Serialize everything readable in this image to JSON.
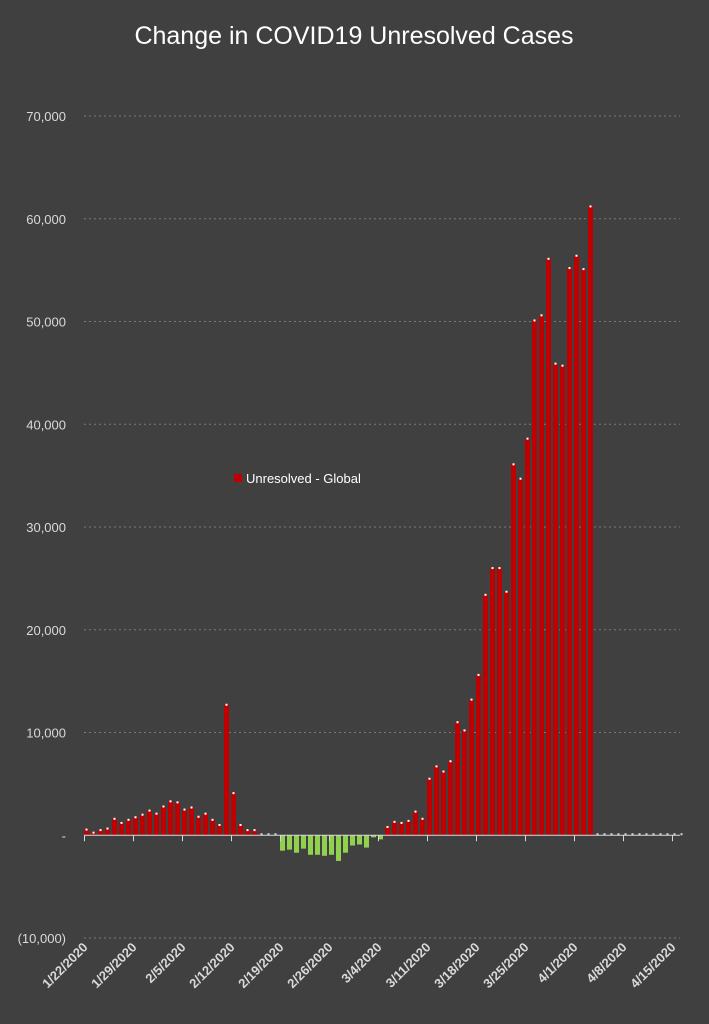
{
  "chart_data": {
    "type": "bar",
    "title": "Change in COVID19 Unresolved Cases",
    "xlabel": "",
    "ylabel": "",
    "start_date": "1/22/2020",
    "x_tick_labels": [
      "1/22/2020",
      "1/29/2020",
      "2/5/2020",
      "2/12/2020",
      "2/19/2020",
      "2/26/2020",
      "3/4/2020",
      "3/11/2020",
      "3/18/2020",
      "3/25/2020",
      "4/1/2020",
      "4/8/2020",
      "4/15/2020"
    ],
    "y_ticks": [
      -10000,
      0,
      10000,
      20000,
      30000,
      40000,
      50000,
      60000,
      70000
    ],
    "y_tick_labels": [
      "(10,000)",
      "-",
      "10,000",
      "20,000",
      "30,000",
      "40,000",
      "50,000",
      "60,000",
      "70,000"
    ],
    "ylim": [
      -10000,
      70000
    ],
    "grid": true,
    "legend_position": "middle-left",
    "series": [
      {
        "name": "Unresolved - Global",
        "positive_color": "#c00000",
        "negative_color": "#92d050",
        "values": [
          550,
          250,
          500,
          650,
          1600,
          1200,
          1500,
          1750,
          2000,
          2400,
          2100,
          2800,
          3300,
          3200,
          2500,
          2700,
          1800,
          2100,
          1500,
          1000,
          12700,
          4100,
          1000,
          500,
          500,
          0,
          0,
          0,
          -1500,
          -1400,
          -1700,
          -1300,
          -1900,
          -1900,
          -2000,
          -1900,
          -2500,
          -1700,
          -1000,
          -900,
          -1200,
          -200,
          -400,
          800,
          1300,
          1200,
          1400,
          2300,
          1600,
          5500,
          6700,
          6200,
          7200,
          11000,
          10200,
          13200,
          15600,
          23400,
          26000,
          26000,
          23700,
          36100,
          34700,
          38600,
          50100,
          50600,
          56100,
          45900,
          45700,
          55200,
          56400,
          55100,
          61200,
          0,
          0,
          0,
          0,
          0,
          0,
          0,
          0,
          0,
          0,
          0,
          0,
          0
        ]
      }
    ]
  }
}
